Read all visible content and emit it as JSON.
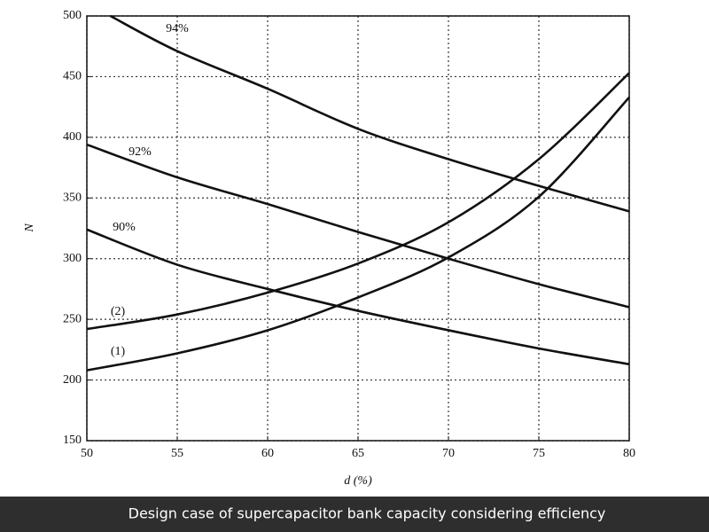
{
  "chart_data": {
    "type": "line",
    "caption": "Design case of supercapacitor bank capacity considering efficiency",
    "xlabel": "d (%)",
    "ylabel": "N",
    "xlim": [
      50,
      80
    ],
    "xticks": [
      50,
      55,
      60,
      65,
      70,
      75,
      80
    ],
    "ylim": [
      150,
      500
    ],
    "yticks": [
      150,
      200,
      250,
      300,
      350,
      400,
      450,
      500
    ],
    "grid": true,
    "series": [
      {
        "name": "94%",
        "color": "#111111",
        "x": [
          51.3,
          55,
          60,
          65,
          70,
          75,
          80
        ],
        "values": [
          500,
          471,
          440,
          407,
          382,
          360,
          339
        ]
      },
      {
        "name": "92%",
        "color": "#111111",
        "x": [
          50,
          55,
          60,
          65,
          70,
          75,
          80
        ],
        "values": [
          394,
          367,
          345,
          322,
          300,
          279,
          260
        ]
      },
      {
        "name": "90%",
        "color": "#111111",
        "x": [
          50,
          55,
          60,
          65,
          70,
          75,
          80
        ],
        "values": [
          324,
          295,
          275,
          257,
          241,
          226,
          213
        ]
      },
      {
        "name": "(2)",
        "color": "#111111",
        "x": [
          50,
          55,
          60,
          65,
          70,
          75,
          80
        ],
        "values": [
          242,
          254,
          272,
          296,
          330,
          382,
          453
        ]
      },
      {
        "name": "(1)",
        "color": "#111111",
        "x": [
          50,
          55,
          60,
          65,
          70,
          75,
          80
        ],
        "values": [
          208,
          222,
          241,
          268,
          301,
          351,
          433
        ]
      }
    ]
  }
}
